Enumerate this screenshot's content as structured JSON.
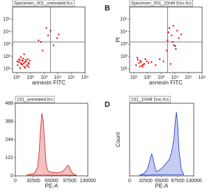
{
  "chart_data": [
    {
      "type": "scatter",
      "title": "Specimen_001_untreated.fcs",
      "x_label": "annexin FITC",
      "log_scale": true,
      "color": "#e01010",
      "x": [
        12,
        20,
        35,
        50,
        80,
        15,
        25,
        40,
        60,
        18,
        30,
        45,
        70,
        22,
        28,
        400,
        2000,
        5000,
        800,
        3000,
        9000,
        1500,
        600,
        12000,
        20,
        35,
        14,
        55,
        90,
        26,
        33,
        17,
        42,
        65,
        11,
        75
      ],
      "values": [
        20,
        30,
        15,
        40,
        25,
        60,
        50,
        35,
        20,
        12,
        70,
        55,
        30,
        25,
        45,
        2000,
        5000,
        800,
        300,
        12000,
        3000,
        20000,
        1500,
        6000,
        90,
        150,
        35,
        18,
        45,
        22,
        28,
        48,
        12,
        60,
        40,
        14
      ],
      "xlim": [
        5,
        1000000
      ],
      "ylim": [
        5,
        1000000
      ],
      "xticks": [
        {
          "value": 10,
          "label": "10¹"
        },
        {
          "value": 100,
          "label": "10²"
        },
        {
          "value": 1000,
          "label": "10³"
        },
        {
          "value": 10000,
          "label": "10⁴"
        },
        {
          "value": 100000,
          "label": "10⁵"
        },
        {
          "value": 1000000,
          "label": "10⁶"
        }
      ],
      "yticks": [
        {
          "value": 10,
          "label": "10¹"
        },
        {
          "value": 100,
          "label": "10²"
        },
        {
          "value": 1000,
          "label": "10³"
        },
        {
          "value": 10000,
          "label": "10⁴"
        },
        {
          "value": 100000,
          "label": "10⁵"
        }
      ],
      "quadrant": [
        3000,
        1500
      ]
    },
    {
      "type": "scatter",
      "title": "Specimen_001_10nM Doc.fcs",
      "panel_label": "B",
      "x_label": "annexin FITC",
      "y_label": "PI",
      "log_scale": true,
      "color": "#e01010",
      "x": [
        15,
        25,
        40,
        60,
        90,
        20,
        35,
        50,
        70,
        120,
        30,
        45,
        3000,
        6000,
        9000,
        15000,
        2500,
        4000,
        20000,
        7000,
        1500,
        800,
        12000,
        5000,
        400,
        200,
        3500,
        8000,
        30000,
        11000,
        18,
        28
      ],
      "values": [
        20,
        30,
        18,
        25,
        40,
        55,
        35,
        22,
        60,
        30,
        45,
        15,
        2000,
        5000,
        800,
        12000,
        300,
        20000,
        3000,
        1500,
        40,
        60,
        400,
        25,
        20,
        35,
        9000,
        30000,
        6000,
        700,
        80,
        15
      ],
      "xlim": [
        5,
        1000000
      ],
      "ylim": [
        5,
        1000000
      ],
      "xticks": [
        {
          "value": 10,
          "label": "10¹"
        },
        {
          "value": 100,
          "label": "10²"
        },
        {
          "value": 1000,
          "label": "10³"
        },
        {
          "value": 10000,
          "label": "10⁴"
        },
        {
          "value": 100000,
          "label": "10⁵"
        },
        {
          "value": 1000000,
          "label": "10⁶"
        }
      ],
      "yticks": [
        {
          "value": 10,
          "label": "10¹"
        },
        {
          "value": 100,
          "label": "10²"
        },
        {
          "value": 1000,
          "label": "10³"
        },
        {
          "value": 10000,
          "label": "10⁴"
        },
        {
          "value": 100000,
          "label": "10⁵"
        }
      ],
      "quadrant": [
        3000,
        1500
      ]
    },
    {
      "type": "line",
      "title": "231_untreated.fcs",
      "x_label": "PE-A",
      "color": "#d01818",
      "fill": "#f3c0c0",
      "x": [
        20000,
        25000,
        30000,
        35000,
        40000,
        42500,
        45000,
        47500,
        50000,
        52500,
        55000,
        57500,
        60000,
        65000,
        70000,
        75000,
        80000,
        85000,
        90000,
        92500,
        95000,
        97500,
        100000,
        105000,
        110000
      ],
      "values": [
        5,
        8,
        12,
        20,
        60,
        150,
        300,
        420,
        380,
        220,
        90,
        40,
        30,
        25,
        22,
        20,
        24,
        30,
        50,
        65,
        70,
        55,
        30,
        10,
        4
      ],
      "xlim": [
        0,
        130000
      ],
      "ylim": [
        0,
        488
      ],
      "xticks": [
        0,
        32500,
        65000,
        97500,
        130000
      ],
      "yticks": [
        0,
        122,
        244,
        366,
        488
      ]
    },
    {
      "type": "line",
      "title": "231_10nM Doc.fcs",
      "panel_label": "D",
      "x_label": "PE-A",
      "y_label": "Count",
      "color": "#1a2fc0",
      "fill": "#c4ccf2",
      "x": [
        20000,
        25000,
        30000,
        35000,
        40000,
        42500,
        45000,
        47500,
        50000,
        52500,
        55000,
        57500,
        60000,
        65000,
        70000,
        75000,
        80000,
        85000,
        90000,
        92500,
        95000,
        97500,
        100000,
        105000,
        110000
      ],
      "values": [
        5,
        10,
        20,
        40,
        90,
        130,
        150,
        120,
        80,
        40,
        30,
        35,
        40,
        50,
        70,
        90,
        110,
        160,
        260,
        380,
        440,
        350,
        180,
        40,
        8
      ],
      "xlim": [
        0,
        130000
      ],
      "ylim": [
        0,
        500
      ],
      "xticks": [
        0,
        32500,
        65000,
        97500,
        130000
      ]
    }
  ]
}
